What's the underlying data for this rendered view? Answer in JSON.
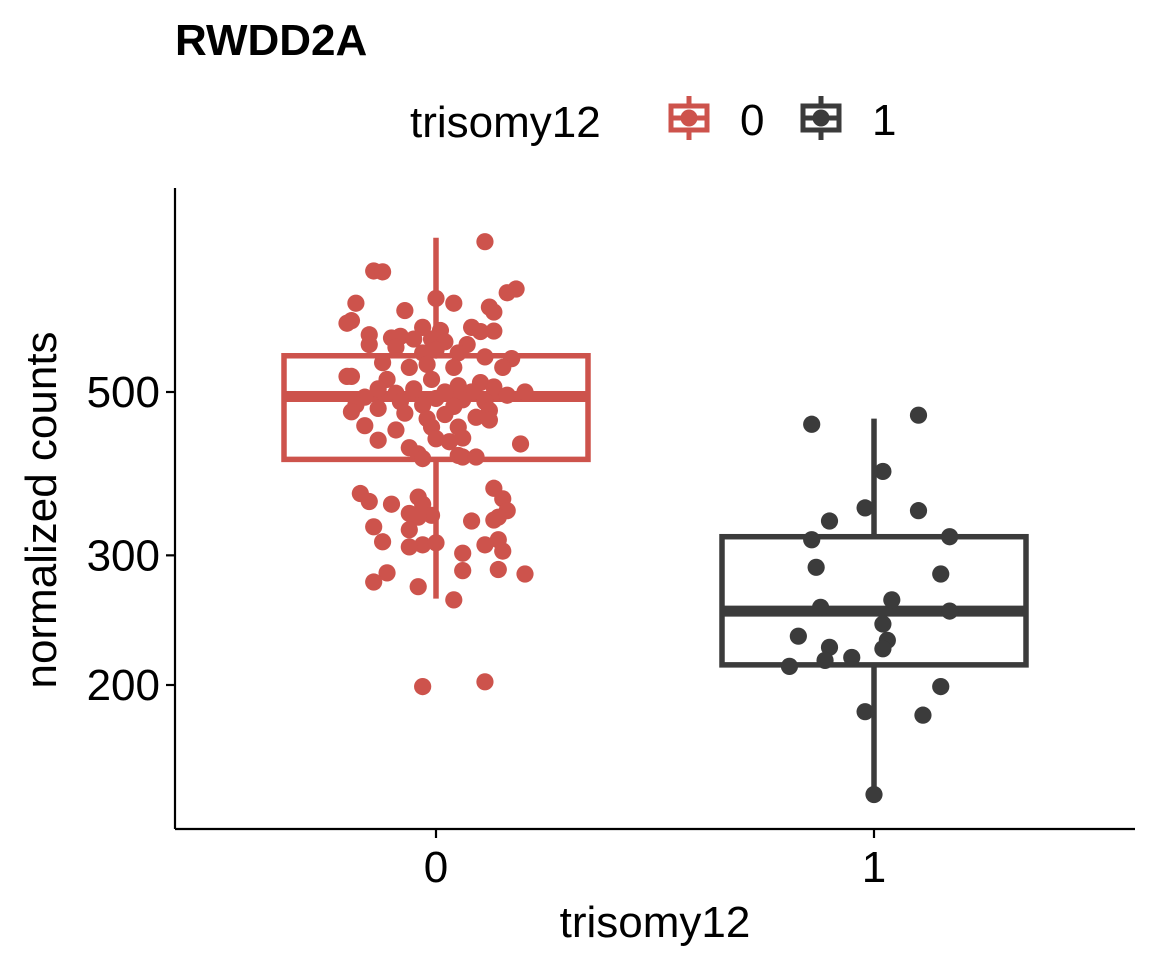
{
  "chart_data": {
    "type": "box",
    "title": "RWDD2A",
    "xlabel": "trisomy12",
    "ylabel": "normalized counts",
    "y_scale": "log10",
    "y_ticks": [
      200,
      300,
      500
    ],
    "y_tick_labels": [
      "200",
      "300",
      "500"
    ],
    "ylim": [
      140,
      820
    ],
    "categories": [
      "0",
      "1"
    ],
    "grid": false,
    "legend": {
      "title": "trisomy12",
      "position": "top",
      "entries": [
        {
          "label": "0",
          "color": "#CD534C"
        },
        {
          "label": "1",
          "color": "#3B3B3B"
        }
      ]
    },
    "series": [
      {
        "name": "0",
        "color": "#CD534C",
        "box": {
          "min": 262,
          "q1": 405,
          "median": 493,
          "q3": 560,
          "max": 810
        },
        "points": [
          {
            "jitter": 0.11,
            "y": 800
          },
          {
            "jitter": -0.14,
            "y": 730
          },
          {
            "jitter": -0.12,
            "y": 728
          },
          {
            "jitter": 0.18,
            "y": 690
          },
          {
            "jitter": 0.16,
            "y": 682
          },
          {
            "jitter": 0.0,
            "y": 670
          },
          {
            "jitter": -0.18,
            "y": 660
          },
          {
            "jitter": 0.04,
            "y": 660
          },
          {
            "jitter": 0.12,
            "y": 652
          },
          {
            "jitter": -0.07,
            "y": 645
          },
          {
            "jitter": 0.13,
            "y": 642
          },
          {
            "jitter": -0.19,
            "y": 625
          },
          {
            "jitter": -0.2,
            "y": 620
          },
          {
            "jitter": -0.03,
            "y": 612
          },
          {
            "jitter": 0.08,
            "y": 612
          },
          {
            "jitter": 0.13,
            "y": 605
          },
          {
            "jitter": 0.1,
            "y": 604
          },
          {
            "jitter": -0.15,
            "y": 598
          },
          {
            "jitter": 0.01,
            "y": 606
          },
          {
            "jitter": -0.08,
            "y": 595
          },
          {
            "jitter": -0.1,
            "y": 592
          },
          {
            "jitter": -0.05,
            "y": 590
          },
          {
            "jitter": -0.01,
            "y": 590
          },
          {
            "jitter": 0.02,
            "y": 585
          },
          {
            "jitter": 0.07,
            "y": 580
          },
          {
            "jitter": -0.15,
            "y": 580
          },
          {
            "jitter": -0.09,
            "y": 575
          },
          {
            "jitter": 0.0,
            "y": 570
          },
          {
            "jitter": 0.05,
            "y": 565
          },
          {
            "jitter": -0.03,
            "y": 565
          },
          {
            "jitter": 0.11,
            "y": 558
          },
          {
            "jitter": 0.17,
            "y": 555
          },
          {
            "jitter": -0.12,
            "y": 548
          },
          {
            "jitter": -0.02,
            "y": 545
          },
          {
            "jitter": -0.06,
            "y": 540
          },
          {
            "jitter": 0.15,
            "y": 540
          },
          {
            "jitter": 0.04,
            "y": 540
          },
          {
            "jitter": -0.19,
            "y": 525
          },
          {
            "jitter": -0.2,
            "y": 525
          },
          {
            "jitter": -0.11,
            "y": 520
          },
          {
            "jitter": -0.01,
            "y": 520
          },
          {
            "jitter": 0.1,
            "y": 515
          },
          {
            "jitter": 0.05,
            "y": 510
          },
          {
            "jitter": 0.13,
            "y": 508
          },
          {
            "jitter": -0.13,
            "y": 505
          },
          {
            "jitter": -0.05,
            "y": 505
          },
          {
            "jitter": 0.02,
            "y": 500
          },
          {
            "jitter": 0.08,
            "y": 500
          },
          {
            "jitter": 0.2,
            "y": 500
          },
          {
            "jitter": -0.09,
            "y": 498
          },
          {
            "jitter": 0.16,
            "y": 495
          },
          {
            "jitter": -0.16,
            "y": 492
          },
          {
            "jitter": 0.0,
            "y": 490
          },
          {
            "jitter": 0.06,
            "y": 488
          },
          {
            "jitter": -0.08,
            "y": 485
          },
          {
            "jitter": 0.11,
            "y": 485
          },
          {
            "jitter": -0.18,
            "y": 480
          },
          {
            "jitter": -0.03,
            "y": 480
          },
          {
            "jitter": 0.04,
            "y": 478
          },
          {
            "jitter": -0.13,
            "y": 475
          },
          {
            "jitter": 0.12,
            "y": 472
          },
          {
            "jitter": -0.19,
            "y": 470
          },
          {
            "jitter": -0.07,
            "y": 468
          },
          {
            "jitter": 0.02,
            "y": 466
          },
          {
            "jitter": 0.09,
            "y": 462
          },
          {
            "jitter": -0.02,
            "y": 460
          },
          {
            "jitter": 0.12,
            "y": 458
          },
          {
            "jitter": -0.16,
            "y": 450
          },
          {
            "jitter": -0.01,
            "y": 448
          },
          {
            "jitter": 0.05,
            "y": 448
          },
          {
            "jitter": -0.09,
            "y": 444
          },
          {
            "jitter": 0.0,
            "y": 432
          },
          {
            "jitter": 0.06,
            "y": 433
          },
          {
            "jitter": -0.13,
            "y": 430
          },
          {
            "jitter": 0.03,
            "y": 428
          },
          {
            "jitter": 0.19,
            "y": 425
          },
          {
            "jitter": -0.06,
            "y": 420
          },
          {
            "jitter": -0.04,
            "y": 412
          },
          {
            "jitter": 0.05,
            "y": 410
          },
          {
            "jitter": 0.06,
            "y": 408
          },
          {
            "jitter": 0.09,
            "y": 408
          },
          {
            "jitter": -0.03,
            "y": 406
          },
          {
            "jitter": 0.13,
            "y": 370
          },
          {
            "jitter": -0.17,
            "y": 364
          },
          {
            "jitter": -0.04,
            "y": 360
          },
          {
            "jitter": 0.15,
            "y": 358
          },
          {
            "jitter": -0.15,
            "y": 355
          },
          {
            "jitter": -0.1,
            "y": 352
          },
          {
            "jitter": -0.03,
            "y": 352
          },
          {
            "jitter": 0.16,
            "y": 345
          },
          {
            "jitter": -0.06,
            "y": 342
          },
          {
            "jitter": -0.01,
            "y": 340
          },
          {
            "jitter": 0.14,
            "y": 338
          },
          {
            "jitter": -0.04,
            "y": 338
          },
          {
            "jitter": 0.13,
            "y": 335
          },
          {
            "jitter": 0.08,
            "y": 334
          },
          {
            "jitter": -0.14,
            "y": 328
          },
          {
            "jitter": -0.06,
            "y": 325
          },
          {
            "jitter": 0.14,
            "y": 315
          },
          {
            "jitter": -0.12,
            "y": 313
          },
          {
            "jitter": -0.03,
            "y": 310
          },
          {
            "jitter": 0.0,
            "y": 312
          },
          {
            "jitter": -0.06,
            "y": 308
          },
          {
            "jitter": 0.11,
            "y": 310
          },
          {
            "jitter": 0.15,
            "y": 304
          },
          {
            "jitter": 0.06,
            "y": 302
          },
          {
            "jitter": 0.14,
            "y": 287
          },
          {
            "jitter": 0.06,
            "y": 286
          },
          {
            "jitter": -0.11,
            "y": 284
          },
          {
            "jitter": 0.2,
            "y": 283
          },
          {
            "jitter": -0.14,
            "y": 276
          },
          {
            "jitter": -0.04,
            "y": 272
          },
          {
            "jitter": 0.04,
            "y": 261
          },
          {
            "jitter": -0.03,
            "y": 199
          },
          {
            "jitter": 0.11,
            "y": 202
          }
        ]
      },
      {
        "name": "1",
        "color": "#3B3B3B",
        "box": {
          "min": 142,
          "q1": 213,
          "median": 252,
          "q3": 318,
          "max": 460
        },
        "points": [
          {
            "jitter": 0.1,
            "y": 465
          },
          {
            "jitter": -0.14,
            "y": 452
          },
          {
            "jitter": 0.02,
            "y": 390
          },
          {
            "jitter": -0.02,
            "y": 348
          },
          {
            "jitter": 0.1,
            "y": 345
          },
          {
            "jitter": -0.1,
            "y": 334
          },
          {
            "jitter": 0.17,
            "y": 318
          },
          {
            "jitter": -0.14,
            "y": 315
          },
          {
            "jitter": -0.13,
            "y": 289
          },
          {
            "jitter": 0.15,
            "y": 283
          },
          {
            "jitter": 0.04,
            "y": 261
          },
          {
            "jitter": -0.12,
            "y": 255
          },
          {
            "jitter": 0.17,
            "y": 252
          },
          {
            "jitter": 0.02,
            "y": 242
          },
          {
            "jitter": -0.17,
            "y": 233
          },
          {
            "jitter": 0.03,
            "y": 230
          },
          {
            "jitter": -0.1,
            "y": 225
          },
          {
            "jitter": 0.02,
            "y": 224
          },
          {
            "jitter": -0.05,
            "y": 218
          },
          {
            "jitter": -0.11,
            "y": 216
          },
          {
            "jitter": -0.19,
            "y": 212
          },
          {
            "jitter": 0.15,
            "y": 199
          },
          {
            "jitter": -0.02,
            "y": 184
          },
          {
            "jitter": 0.11,
            "y": 182
          },
          {
            "jitter": 0.0,
            "y": 142
          }
        ]
      }
    ]
  }
}
